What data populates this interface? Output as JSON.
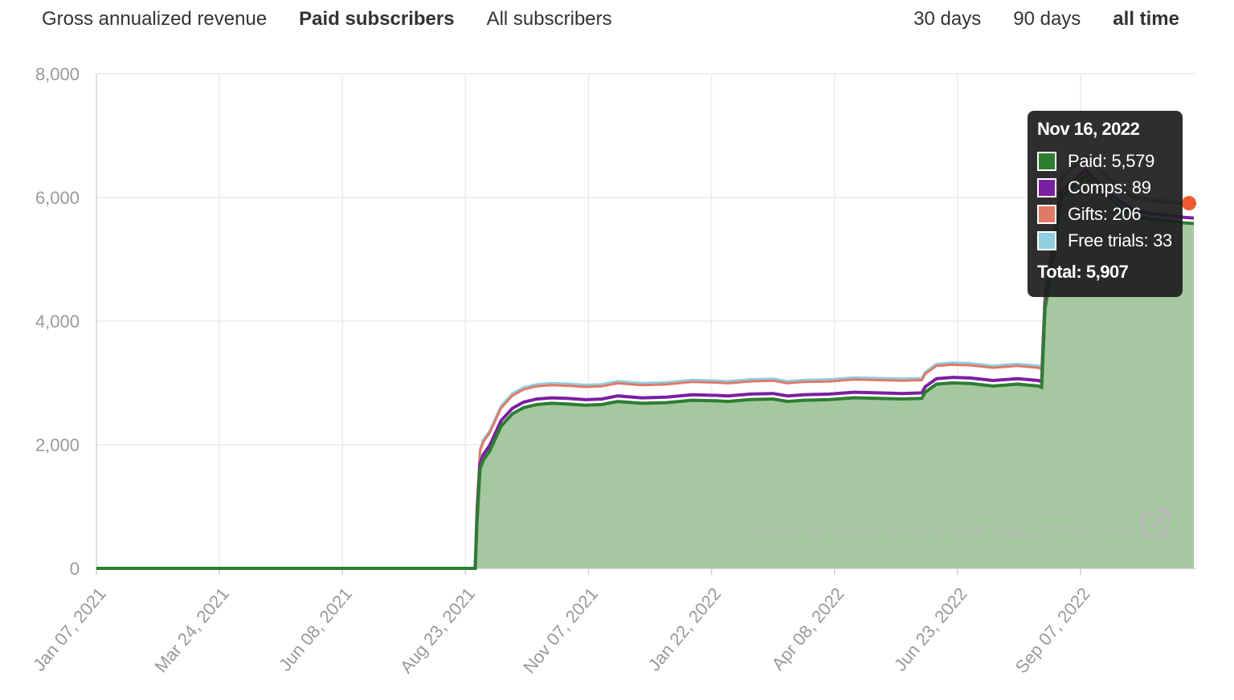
{
  "tabs": {
    "metrics": [
      {
        "label": "Gross annualized revenue",
        "active": false
      },
      {
        "label": "Paid subscribers",
        "active": true
      },
      {
        "label": "All subscribers",
        "active": false
      }
    ],
    "ranges": [
      {
        "label": "30 days",
        "active": false
      },
      {
        "label": "90 days",
        "active": false
      },
      {
        "label": "all time",
        "active": true
      }
    ]
  },
  "watermark": "WWW.MORNINGPERSONNEWSLETTER.COM",
  "tooltip": {
    "date": "Nov 16, 2022",
    "rows": [
      {
        "label": "Paid: 5,579",
        "color": "#2e7d32"
      },
      {
        "label": "Comps: 89",
        "color": "#7b1fa2"
      },
      {
        "label": "Gifts: 206",
        "color": "#e07a68"
      },
      {
        "label": "Free trials: 33",
        "color": "#8ecfe0"
      }
    ],
    "total": "Total: 5,907"
  },
  "chart_data": {
    "type": "area",
    "ylim": [
      0,
      8000
    ],
    "y_ticks": [
      0,
      2000,
      4000,
      6000,
      8000
    ],
    "y_tick_labels": [
      "0",
      "2,000",
      "4,000",
      "6,000",
      "8,000"
    ],
    "x_ticks": [
      "2021-01-07",
      "2021-03-24",
      "2021-06-08",
      "2021-08-23",
      "2021-11-07",
      "2022-01-22",
      "2022-04-08",
      "2022-06-23",
      "2022-09-07"
    ],
    "x_tick_labels": [
      "Jan 07, 2021",
      "Mar 24, 2021",
      "Jun 08, 2021",
      "Aug 23, 2021",
      "Nov 07, 2021",
      "Jan 22, 2022",
      "Apr 08, 2022",
      "Jun 23, 2022",
      "Sep 07, 2022"
    ],
    "x_range": [
      "2021-01-07",
      "2022-11-16"
    ],
    "grid": true,
    "colors": {
      "paid": "#2e7d32",
      "paid_fill": "#a5c8a0",
      "comps": "#7b1fa2",
      "gifts": "#e07a68",
      "trials": "#8ecfe0"
    },
    "series": [
      {
        "name": "Paid",
        "x": [
          "2021-01-07",
          "2021-08-29",
          "2021-08-30",
          "2021-09-01",
          "2021-09-03",
          "2021-09-07",
          "2021-09-14",
          "2021-09-21",
          "2021-09-28",
          "2021-10-06",
          "2021-10-15",
          "2021-10-25",
          "2021-11-05",
          "2021-11-15",
          "2021-11-25",
          "2021-12-10",
          "2021-12-25",
          "2022-01-10",
          "2022-01-25",
          "2022-02-01",
          "2022-02-15",
          "2022-03-01",
          "2022-03-10",
          "2022-03-20",
          "2022-04-05",
          "2022-04-20",
          "2022-05-05",
          "2022-05-20",
          "2022-06-01",
          "2022-06-03",
          "2022-06-10",
          "2022-06-20",
          "2022-07-01",
          "2022-07-15",
          "2022-07-30",
          "2022-08-12",
          "2022-08-14",
          "2022-08-16",
          "2022-08-18",
          "2022-08-22",
          "2022-08-26",
          "2022-09-01",
          "2022-09-10",
          "2022-09-20",
          "2022-10-01",
          "2022-10-10",
          "2022-10-20",
          "2022-11-01",
          "2022-11-10",
          "2022-11-16"
        ],
        "y": [
          0,
          0,
          700,
          1600,
          1750,
          1900,
          2300,
          2500,
          2600,
          2650,
          2670,
          2660,
          2640,
          2650,
          2700,
          2670,
          2680,
          2720,
          2710,
          2700,
          2730,
          2740,
          2700,
          2720,
          2730,
          2760,
          2750,
          2740,
          2750,
          2850,
          2980,
          3000,
          2990,
          2950,
          2980,
          2950,
          2930,
          4200,
          4500,
          5200,
          6000,
          6150,
          6350,
          6100,
          5850,
          5700,
          5650,
          5620,
          5590,
          5579
        ]
      },
      {
        "name": "Comps",
        "value": 89
      },
      {
        "name": "Gifts",
        "value": 206
      },
      {
        "name": "Free trials",
        "value": 33
      }
    ]
  }
}
